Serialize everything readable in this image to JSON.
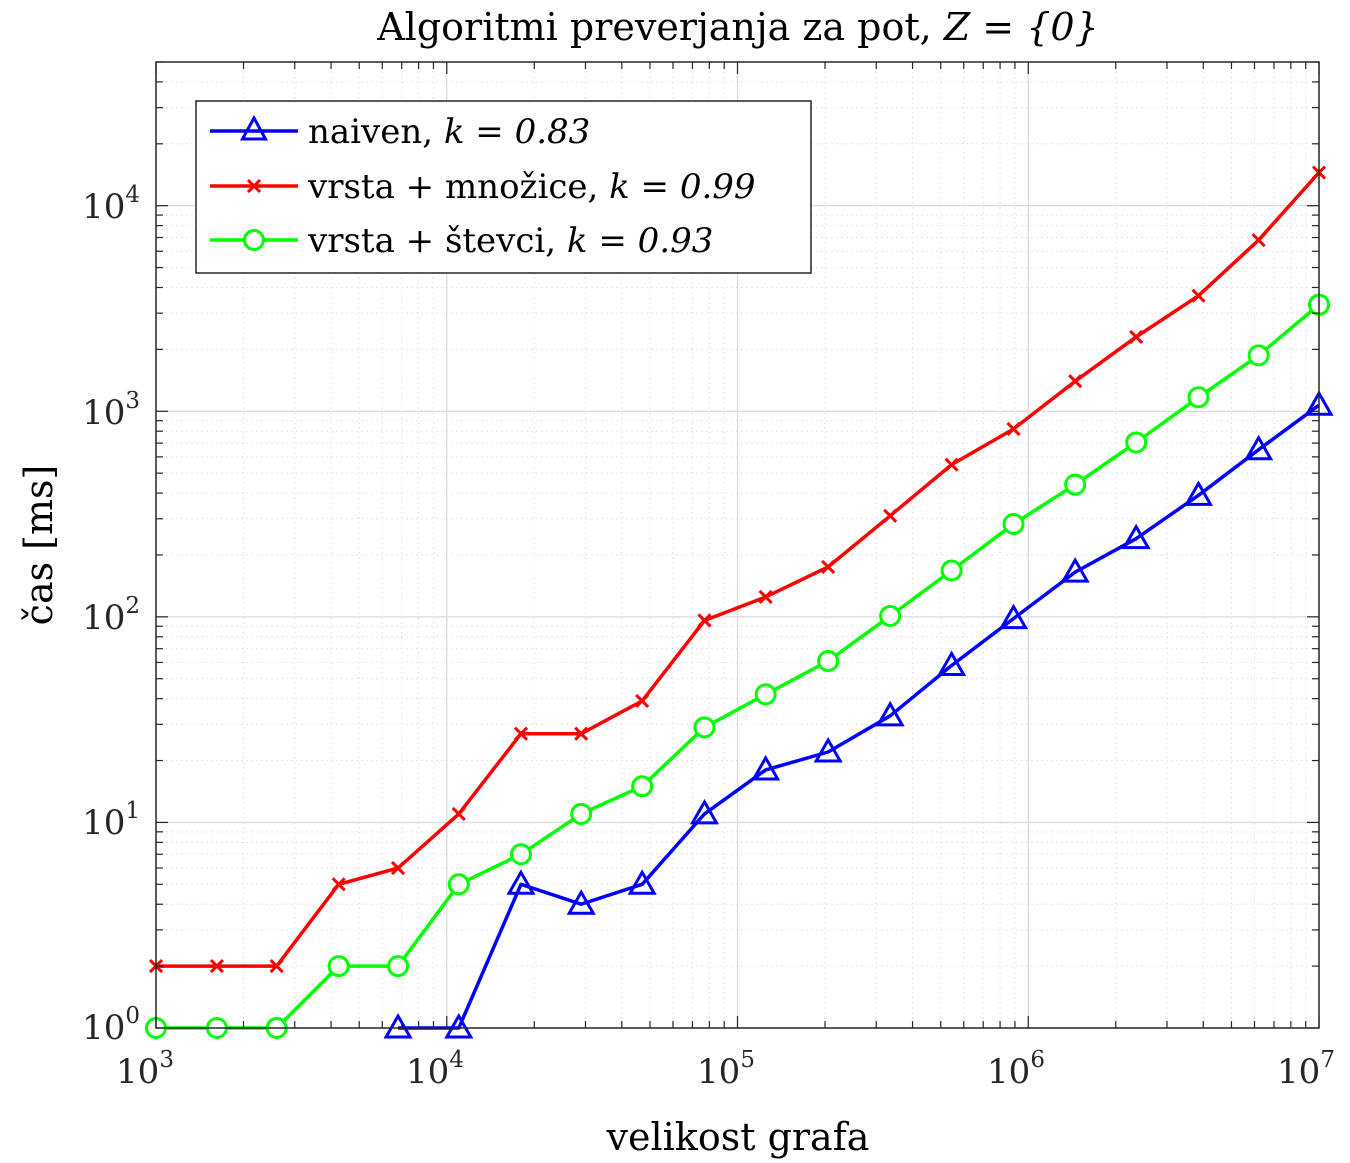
{
  "chart_data": {
    "type": "line",
    "title_prefix": "Algoritmi preverjanja za pot, ",
    "title_math": "Z = {0}",
    "xlabel": "velikost grafa",
    "ylabel": "čas [ms]",
    "x_scale": "log",
    "y_scale": "log",
    "xlim": [
      1000,
      10000000
    ],
    "ylim": [
      1,
      50000
    ],
    "x_ticks": [
      {
        "base": "10",
        "exp": "3"
      },
      {
        "base": "10",
        "exp": "4"
      },
      {
        "base": "10",
        "exp": "5"
      },
      {
        "base": "10",
        "exp": "6"
      },
      {
        "base": "10",
        "exp": "7"
      }
    ],
    "y_ticks": [
      {
        "base": "10",
        "exp": "0"
      },
      {
        "base": "10",
        "exp": "1"
      },
      {
        "base": "10",
        "exp": "2"
      },
      {
        "base": "10",
        "exp": "3"
      },
      {
        "base": "10",
        "exp": "4"
      }
    ],
    "grid": true,
    "minor_grid": true,
    "legend_position": "top-left",
    "series": [
      {
        "name": "naiven, ",
        "k_label": "k = 0.83",
        "color": "#0000ff",
        "marker": "triangle",
        "x": [
          6800,
          11000,
          18000,
          29000,
          47000,
          77000,
          125000,
          205000,
          335000,
          545000,
          890000,
          1450000,
          2350000,
          3850000,
          6200000,
          10000000
        ],
        "y": [
          1,
          1,
          5,
          4,
          5,
          11,
          18,
          22,
          33,
          58,
          98,
          165,
          240,
          390,
          650,
          1070
        ]
      },
      {
        "name": "vrsta + množice, ",
        "k_label": "k = 0.99",
        "color": "#ff0000",
        "marker": "x",
        "x": [
          1000,
          1620,
          2600,
          4250,
          6800,
          11000,
          18000,
          29000,
          47000,
          77000,
          125000,
          205000,
          335000,
          545000,
          890000,
          1450000,
          2350000,
          3850000,
          6200000,
          10000000
        ],
        "y": [
          2,
          2,
          2,
          5,
          6,
          11,
          27,
          27,
          39,
          96,
          125,
          175,
          310,
          550,
          820,
          1400,
          2300,
          3650,
          6800,
          14500
        ]
      },
      {
        "name": "vrsta + števci, ",
        "k_label": "k = 0.93",
        "color": "#00ff00",
        "marker": "circle",
        "x": [
          1000,
          1620,
          2600,
          4250,
          6800,
          11000,
          18000,
          29000,
          47000,
          77000,
          125000,
          205000,
          335000,
          545000,
          890000,
          1450000,
          2350000,
          3850000,
          6200000,
          10000000
        ],
        "y": [
          1,
          1,
          1,
          2,
          2,
          5,
          7,
          11,
          15,
          29,
          42,
          61,
          101,
          168,
          283,
          440,
          705,
          1170,
          1870,
          3300
        ]
      }
    ]
  }
}
